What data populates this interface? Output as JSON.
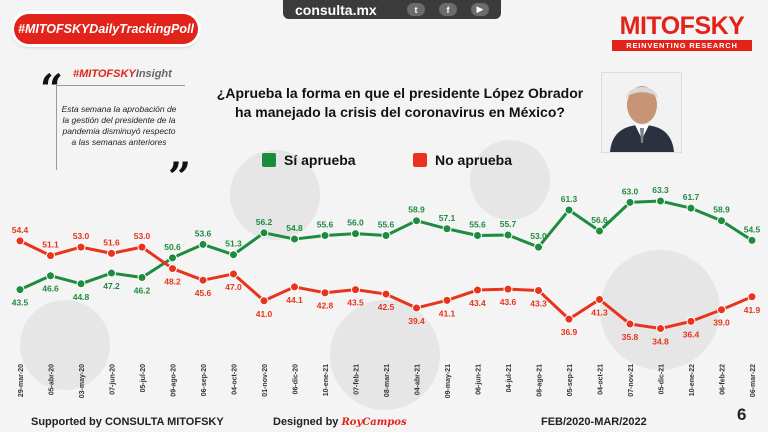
{
  "badge": {
    "label": "#MITOFSKYDailyTrackingPoll"
  },
  "topbar": {
    "site": "consulta.mx",
    "icons": [
      "twitter-icon",
      "facebook-icon",
      "youtube-icon"
    ]
  },
  "logo": {
    "brand": "MITOFSKY",
    "tagline": "REINVENTING RESEARCH"
  },
  "insight": {
    "tag_prefix": "#MITOFSKY",
    "tag_suffix": "Insight",
    "text": "Esta semana la aprobación de la gestión del presidente de la pandemia disminuyó respecto a las semanas anteriores"
  },
  "question": {
    "line1": "¿Aprueba la forma en que el presidente López Obrador",
    "line2": "ha manejado la crisis del coronavirus en México?"
  },
  "legend": {
    "approve": "Sí aprueba",
    "disapprove": "No aprueba"
  },
  "colors": {
    "approve": "#1e8c3f",
    "disapprove": "#e8341c",
    "accent": "#e2231a"
  },
  "footer": {
    "supported": "Supported by   CONSULTA   MITOFSKY",
    "designed": "Designed by",
    "designer": "RoyCampos",
    "period": "FEB/2020-MAR/2022",
    "page": "6"
  },
  "chart_data": {
    "type": "line",
    "title": "¿Aprueba la forma en que el presidente López Obrador ha manejado la crisis del coronavirus en México?",
    "xlabel": "",
    "ylabel": "",
    "categories": [
      "29-mar-20",
      "05-abr-20",
      "03-may-20",
      "07-jun-20",
      "05-jul-20",
      "09-ago-20",
      "06-sep-20",
      "04-oct-20",
      "01-nov-20",
      "06-dic-20",
      "10-ene-21",
      "07-feb-21",
      "08-mar-21",
      "04-abr-21",
      "09-may-21",
      "06-jun-21",
      "04-jul-21",
      "08-ago-21",
      "05-sep-21",
      "04-oct-21",
      "07-nov-21",
      "05-dic-21",
      "10-ene-22",
      "06-feb-22",
      "06-mar-22"
    ],
    "series": [
      {
        "name": "Sí aprueba",
        "values": [
          43.5,
          46.6,
          44.8,
          47.2,
          46.2,
          50.6,
          53.6,
          51.3,
          56.2,
          54.8,
          55.6,
          56.0,
          55.6,
          58.9,
          57.1,
          55.6,
          55.7,
          53.0,
          61.3,
          56.6,
          63.0,
          63.3,
          61.7,
          58.9,
          54.5
        ]
      },
      {
        "name": "No aprueba",
        "values": [
          54.4,
          51.1,
          53.0,
          51.6,
          53.0,
          48.2,
          45.6,
          47.0,
          41.0,
          44.1,
          42.8,
          43.5,
          42.5,
          39.4,
          41.1,
          43.4,
          43.6,
          43.3,
          36.9,
          41.3,
          35.8,
          34.8,
          36.4,
          39.0,
          41.9
        ]
      }
    ],
    "ylim": [
      30,
      68
    ],
    "grid": false,
    "legend_position": "top"
  }
}
